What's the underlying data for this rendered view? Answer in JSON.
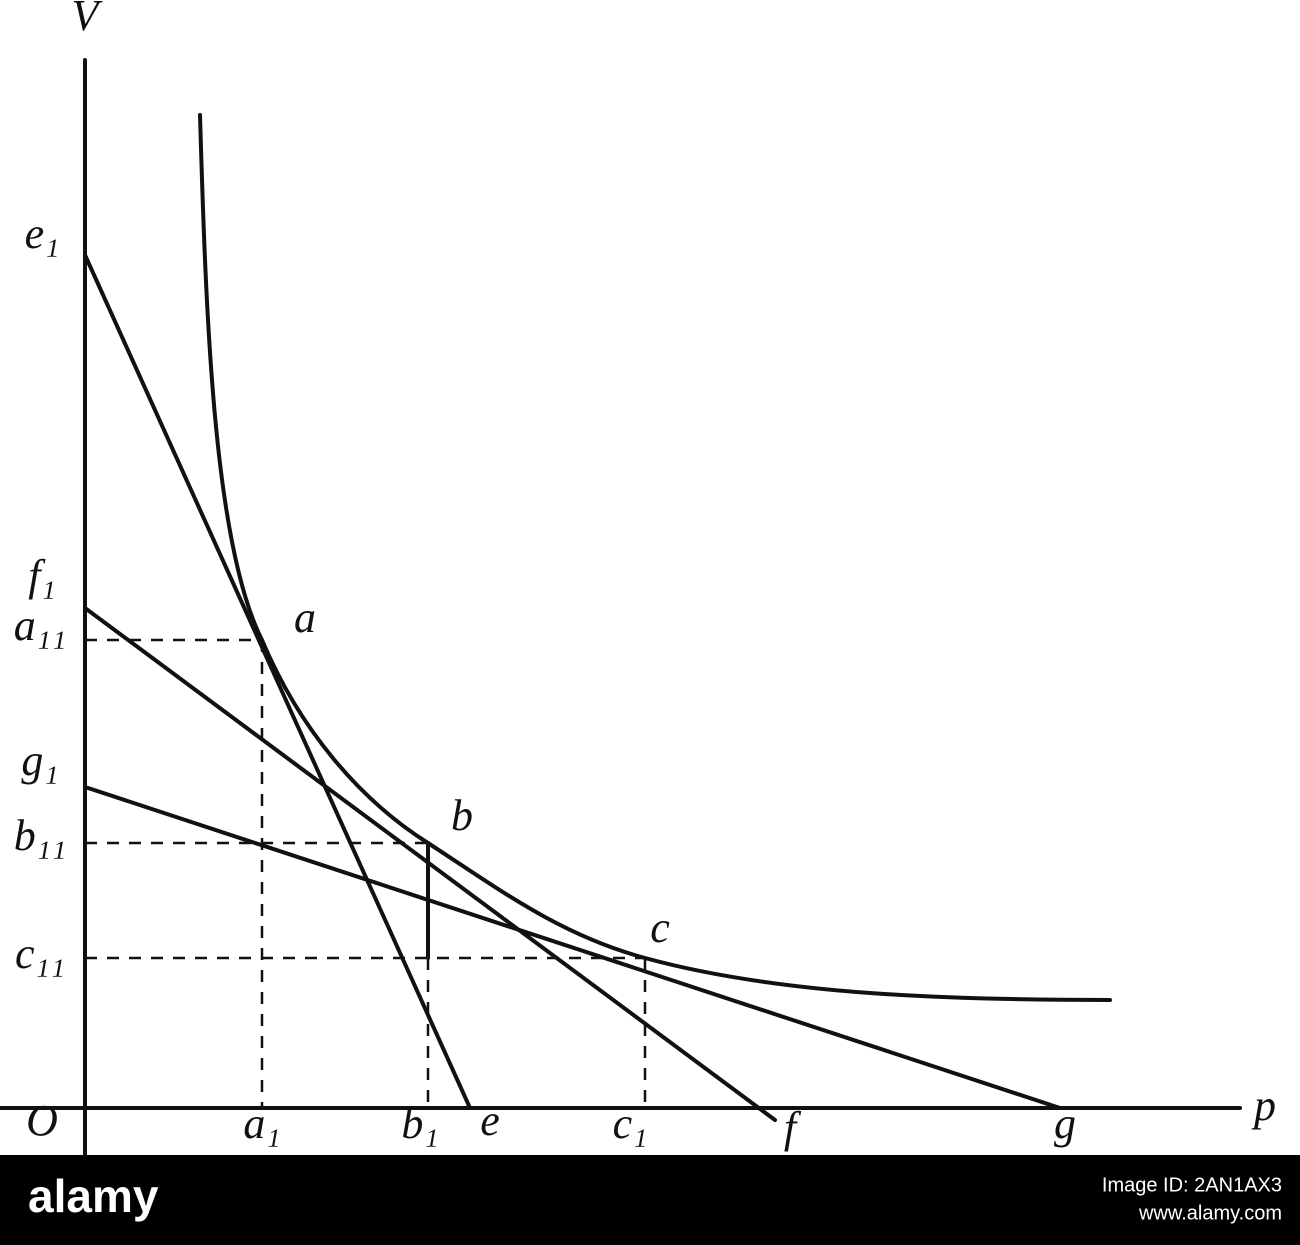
{
  "axes": {
    "y_label": "V",
    "x_label": "p",
    "origin": "O"
  },
  "curve_points": [
    "a",
    "b",
    "c"
  ],
  "axis_y_labels": [
    "e₁",
    "f₁",
    "a₁₁",
    "g₁",
    "b₁₁",
    "c₁₁"
  ],
  "axis_x_labels": [
    "a₁",
    "b₁",
    "e",
    "c₁",
    "f",
    "g"
  ],
  "watermark": {
    "brand": "alamy",
    "image_id": "Image ID: 2AN1AX3",
    "url": "www.alamy.com"
  }
}
